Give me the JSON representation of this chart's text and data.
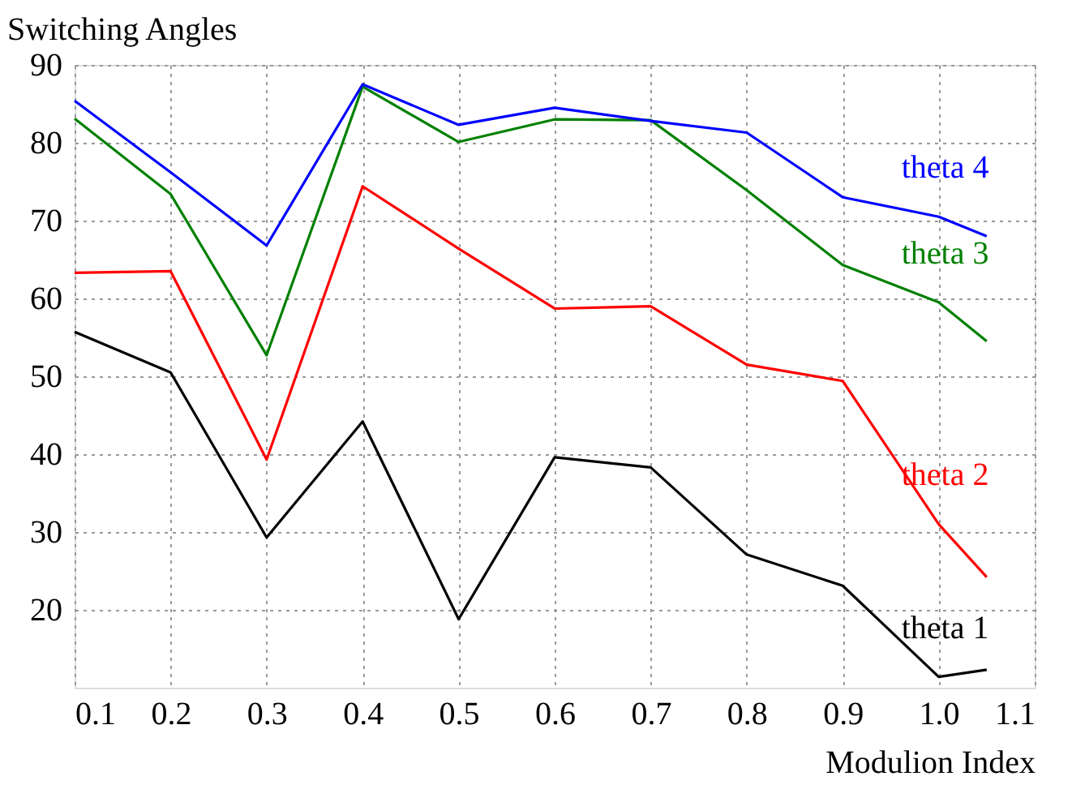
{
  "chart_data": {
    "type": "line",
    "ylabel": "Switching Angles",
    "xlabel": "Modulion Index",
    "x": [
      0.1,
      0.2,
      0.3,
      0.4,
      0.5,
      0.6,
      0.7,
      0.8,
      0.9,
      1.0,
      1.05
    ],
    "series": [
      {
        "name": "theta 1",
        "color": "#000000",
        "values": [
          55.7,
          50.5,
          29.3,
          44.2,
          18.8,
          39.6,
          38.3,
          27.1,
          23.1,
          11.4,
          12.3
        ]
      },
      {
        "name": "theta 2",
        "color": "#ff0000",
        "values": [
          63.3,
          63.5,
          39.3,
          74.4,
          66.4,
          58.7,
          59.0,
          51.5,
          49.4,
          31.0,
          24.2
        ]
      },
      {
        "name": "theta 3",
        "color": "#008000",
        "values": [
          83.1,
          73.4,
          52.7,
          87.2,
          80.1,
          83.0,
          82.9,
          73.9,
          64.3,
          59.5,
          54.5
        ]
      },
      {
        "name": "theta 4",
        "color": "#0000ff",
        "values": [
          85.4,
          76.2,
          66.8,
          87.5,
          82.3,
          84.5,
          82.8,
          81.3,
          73.0,
          70.5,
          68.0
        ]
      }
    ],
    "xlim": [
      0.1,
      1.1
    ],
    "xticks": [
      0.1,
      0.2,
      0.3,
      0.4,
      0.5,
      0.6,
      0.7,
      0.8,
      0.9,
      {
        "value": 1.0,
        "label": "1.0"
      },
      1.1
    ],
    "ylim": [
      10,
      90
    ],
    "yticks": [
      20,
      30,
      40,
      50,
      60,
      70,
      80,
      90
    ],
    "grid": true,
    "marker": "none",
    "line_style": "solid"
  }
}
